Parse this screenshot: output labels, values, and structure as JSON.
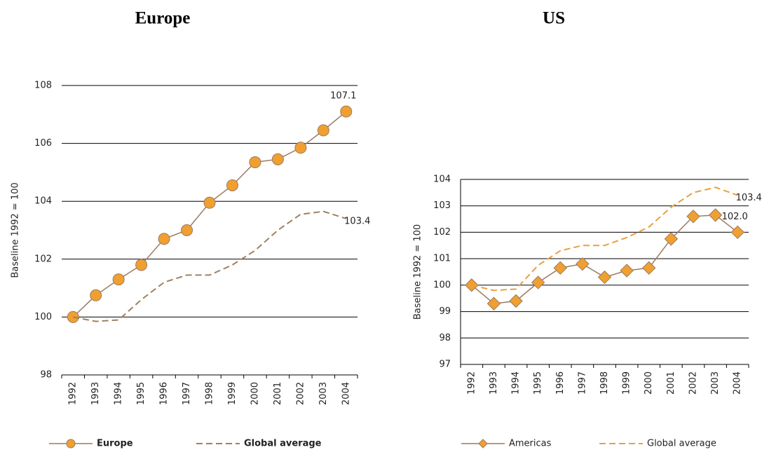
{
  "chart_data": [
    {
      "type": "line",
      "title": "Europe",
      "ylabel": "Baseline 1992  = 100",
      "categories": [
        "1992",
        "1993",
        "1994",
        "1995",
        "1996",
        "1997",
        "1998",
        "1999",
        "2000",
        "2001",
        "2002",
        "2003",
        "2004"
      ],
      "series": [
        {
          "name": "Europe",
          "color": "#f0a030",
          "line_color": "#9c7a60",
          "marker": "circle",
          "dashed": false,
          "values": [
            100,
            100.75,
            101.3,
            101.8,
            102.7,
            103.0,
            103.95,
            104.55,
            105.35,
            105.45,
            105.85,
            106.45,
            107.1
          ],
          "value_labels": [
            null,
            null,
            null,
            null,
            null,
            null,
            null,
            null,
            null,
            null,
            null,
            null,
            "107.1"
          ]
        },
        {
          "name": "Global average",
          "color": "#a08060",
          "line_color": "#a08060",
          "marker": "none",
          "dashed": true,
          "values": [
            100,
            99.85,
            99.9,
            100.6,
            101.2,
            101.45,
            101.45,
            101.8,
            102.3,
            103.0,
            103.55,
            103.65,
            103.4
          ],
          "value_labels": [
            null,
            null,
            null,
            null,
            null,
            null,
            null,
            null,
            null,
            null,
            null,
            null,
            "103.4"
          ]
        }
      ],
      "ylim": [
        98,
        108
      ],
      "yticks": [
        98,
        100,
        102,
        104,
        106,
        108
      ],
      "grid": true,
      "legend": "bottom"
    },
    {
      "type": "line",
      "title": "US",
      "ylabel": "Baseline 1992  = 100",
      "categories": [
        "1992",
        "1993",
        "1994",
        "1995",
        "1996",
        "1997",
        "1998",
        "1999",
        "2000",
        "2001",
        "2002",
        "2003",
        "2004"
      ],
      "series": [
        {
          "name": "Americas",
          "color": "#f0a030",
          "line_color": "#9c7a60",
          "marker": "diamond",
          "dashed": false,
          "values": [
            100,
            99.3,
            99.4,
            100.1,
            100.65,
            100.8,
            100.3,
            100.55,
            100.65,
            101.75,
            102.6,
            102.65,
            102.0
          ],
          "value_labels": [
            null,
            null,
            null,
            null,
            null,
            null,
            null,
            null,
            null,
            null,
            null,
            null,
            "102.0"
          ]
        },
        {
          "name": "Global average",
          "color": "#e8a040",
          "line_color": "#e8a040",
          "marker": "none",
          "dashed": true,
          "values": [
            100,
            99.8,
            99.85,
            100.75,
            101.3,
            101.5,
            101.5,
            101.8,
            102.2,
            102.95,
            103.5,
            103.7,
            103.4
          ],
          "value_labels": [
            null,
            null,
            null,
            null,
            null,
            null,
            null,
            null,
            null,
            null,
            null,
            null,
            "103.4"
          ]
        }
      ],
      "ylim": [
        97,
        104
      ],
      "yticks": [
        97,
        98,
        99,
        100,
        101,
        102,
        103,
        104
      ],
      "grid": true,
      "legend": "bottom"
    }
  ]
}
